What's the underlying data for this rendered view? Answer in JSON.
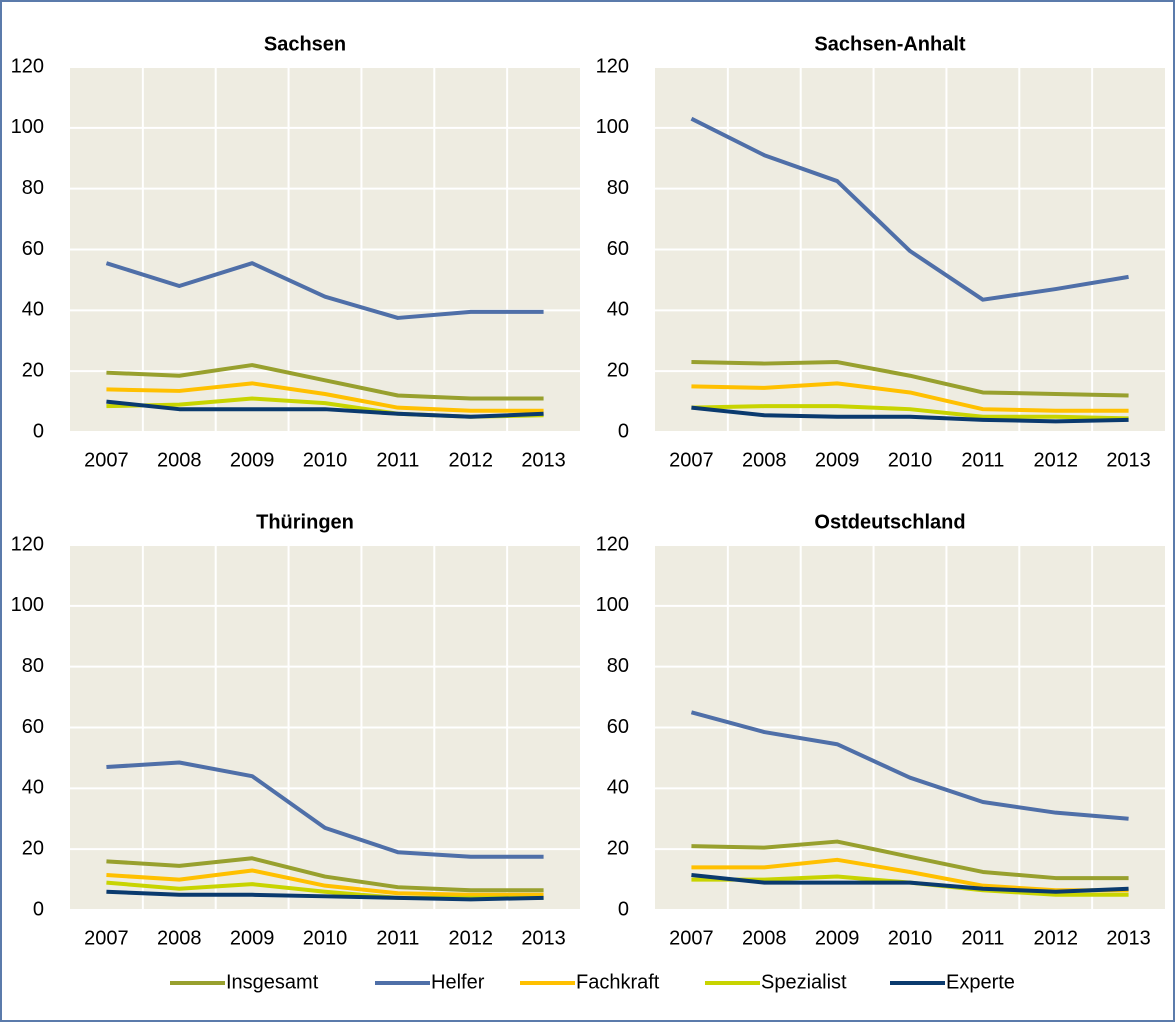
{
  "chart_data": [
    {
      "type": "line",
      "title": "Sachsen",
      "categories": [
        "2007",
        "2008",
        "2009",
        "2010",
        "2011",
        "2012",
        "2013"
      ],
      "ylim": [
        0,
        120
      ],
      "yticks": [
        0,
        20,
        40,
        60,
        80,
        100,
        120
      ],
      "grid": true,
      "series": [
        {
          "name": "Insgesamt",
          "color": "#98a02e",
          "values": [
            19.5,
            18.5,
            22,
            17,
            12,
            11,
            11
          ]
        },
        {
          "name": "Helfer",
          "color": "#4f6fa8",
          "values": [
            55.5,
            48,
            55.5,
            44.5,
            37.5,
            39.5,
            39.5
          ]
        },
        {
          "name": "Fachkraft",
          "color": "#ffc000",
          "values": [
            14,
            13.5,
            16,
            12.5,
            8,
            7,
            7
          ]
        },
        {
          "name": "Spezialist",
          "color": "#c8d400",
          "values": [
            8.5,
            9,
            11,
            9.5,
            6,
            5,
            5.5
          ]
        },
        {
          "name": "Experte",
          "color": "#0a3a6e",
          "values": [
            10,
            7.5,
            7.5,
            7.5,
            6,
            5,
            6
          ]
        }
      ]
    },
    {
      "type": "line",
      "title": "Sachsen-Anhalt",
      "categories": [
        "2007",
        "2008",
        "2009",
        "2010",
        "2011",
        "2012",
        "2013"
      ],
      "ylim": [
        0,
        120
      ],
      "yticks": [
        0,
        20,
        40,
        60,
        80,
        100,
        120
      ],
      "grid": true,
      "series": [
        {
          "name": "Insgesamt",
          "color": "#98a02e",
          "values": [
            23,
            22.5,
            23,
            18.5,
            13,
            12.5,
            12
          ]
        },
        {
          "name": "Helfer",
          "color": "#4f6fa8",
          "values": [
            103,
            91,
            82.5,
            59.5,
            43.5,
            47,
            51
          ]
        },
        {
          "name": "Fachkraft",
          "color": "#ffc000",
          "values": [
            15,
            14.5,
            16,
            13,
            7.5,
            7,
            7
          ]
        },
        {
          "name": "Spezialist",
          "color": "#c8d400",
          "values": [
            8,
            8.5,
            8.5,
            7.5,
            5,
            5,
            4.5
          ]
        },
        {
          "name": "Experte",
          "color": "#0a3a6e",
          "values": [
            8,
            5.5,
            5,
            5,
            4,
            3.5,
            4
          ]
        }
      ]
    },
    {
      "type": "line",
      "title": "Thüringen",
      "categories": [
        "2007",
        "2008",
        "2009",
        "2010",
        "2011",
        "2012",
        "2013"
      ],
      "ylim": [
        0,
        120
      ],
      "yticks": [
        0,
        20,
        40,
        60,
        80,
        100,
        120
      ],
      "grid": true,
      "series": [
        {
          "name": "Insgesamt",
          "color": "#98a02e",
          "values": [
            16,
            14.5,
            17,
            11,
            7.5,
            6.5,
            6.5
          ]
        },
        {
          "name": "Helfer",
          "color": "#4f6fa8",
          "values": [
            47,
            48.5,
            44,
            27,
            19,
            17.5,
            17.5
          ]
        },
        {
          "name": "Fachkraft",
          "color": "#ffc000",
          "values": [
            11.5,
            10,
            13,
            8,
            5.5,
            5,
            5
          ]
        },
        {
          "name": "Spezialist",
          "color": "#c8d400",
          "values": [
            9,
            7,
            8.5,
            6,
            4,
            4,
            4
          ]
        },
        {
          "name": "Experte",
          "color": "#0a3a6e",
          "values": [
            6,
            5,
            5,
            4.5,
            4,
            3.5,
            4
          ]
        }
      ]
    },
    {
      "type": "line",
      "title": "Ostdeutschland",
      "categories": [
        "2007",
        "2008",
        "2009",
        "2010",
        "2011",
        "2012",
        "2013"
      ],
      "ylim": [
        0,
        120
      ],
      "yticks": [
        0,
        20,
        40,
        60,
        80,
        100,
        120
      ],
      "grid": true,
      "series": [
        {
          "name": "Insgesamt",
          "color": "#98a02e",
          "values": [
            21,
            20.5,
            22.5,
            17.5,
            12.5,
            10.5,
            10.5
          ]
        },
        {
          "name": "Helfer",
          "color": "#4f6fa8",
          "values": [
            65,
            58.5,
            54.5,
            43.5,
            35.5,
            32,
            30
          ]
        },
        {
          "name": "Fachkraft",
          "color": "#ffc000",
          "values": [
            14,
            14,
            16.5,
            12.5,
            8,
            6.5,
            6.5
          ]
        },
        {
          "name": "Spezialist",
          "color": "#c8d400",
          "values": [
            10,
            10,
            11,
            9,
            6.5,
            5,
            5
          ]
        },
        {
          "name": "Experte",
          "color": "#0a3a6e",
          "values": [
            11.5,
            9,
            9,
            9,
            7,
            6,
            7
          ]
        }
      ]
    }
  ]
}
